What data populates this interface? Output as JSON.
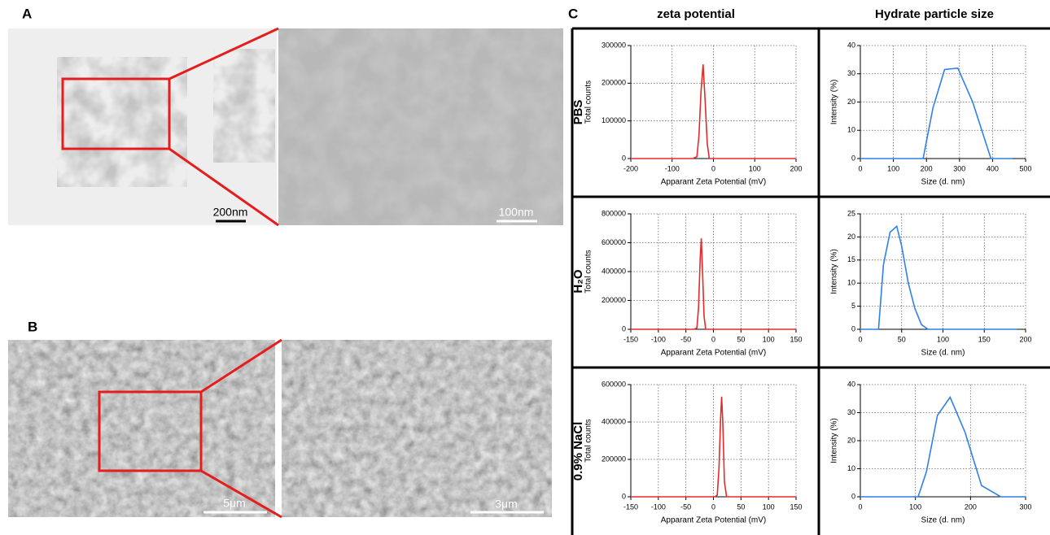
{
  "panel_labels": [
    "A",
    "B",
    "C"
  ],
  "micrographs": {
    "A": [
      "200nm",
      "100nm"
    ],
    "B": [
      "5μm",
      "3μm"
    ]
  },
  "column_headers": [
    "zeta potential",
    "Hydrate particle size"
  ],
  "row_labels": [
    "PBS",
    "H₂O",
    "0.9% NaCl"
  ],
  "chart_data": [
    {
      "type": "line",
      "xlabel": "Apparant Zeta Potential (mV)",
      "ylabel": "Total counts",
      "color": "#e32b2b",
      "grid": true,
      "x": [
        -200,
        -50,
        -40,
        -35,
        -30,
        -25,
        -20,
        -15,
        -10,
        200
      ],
      "values": [
        0,
        0,
        5000,
        60000,
        180000,
        250000,
        150000,
        40000,
        0,
        0
      ],
      "xlim": [
        -200,
        200
      ],
      "xticks": [
        -200,
        -100,
        0,
        100,
        200
      ],
      "ylim": [
        0,
        300000
      ],
      "yticks": [
        0,
        100000,
        200000,
        300000
      ]
    },
    {
      "type": "line",
      "xlabel": "Size (d. nm)",
      "ylabel": "Intensity (%)",
      "color": "#2f80e8",
      "grid": true,
      "x": [
        0,
        190,
        220,
        255,
        295,
        340,
        395,
        460
      ],
      "values": [
        0,
        0,
        18,
        31.5,
        32,
        20,
        0,
        0
      ],
      "xlim": [
        0,
        500
      ],
      "xticks": [
        0,
        100,
        200,
        300,
        400,
        500
      ],
      "ylim": [
        0,
        40
      ],
      "yticks": [
        0,
        10,
        20,
        30,
        40
      ]
    },
    {
      "type": "line",
      "xlabel": "Apparant Zeta Potential (mV)",
      "ylabel": "Total counts",
      "color": "#e32b2b",
      "grid": true,
      "x": [
        -150,
        -35,
        -30,
        -27,
        -24,
        -22,
        -20,
        -17,
        -14,
        150
      ],
      "values": [
        0,
        0,
        10000,
        150000,
        500000,
        630000,
        420000,
        90000,
        0,
        0
      ],
      "xlim": [
        -150,
        150
      ],
      "xticks": [
        -150,
        -100,
        -50,
        0,
        50,
        100,
        150
      ],
      "ylim": [
        0,
        800000
      ],
      "yticks": [
        0,
        200000,
        400000,
        600000,
        800000
      ]
    },
    {
      "type": "line",
      "xlabel": "Size (d. nm)",
      "ylabel": "Intensity (%)",
      "color": "#2f80e8",
      "grid": true,
      "x": [
        0,
        22,
        28,
        36,
        44,
        50,
        58,
        66,
        74,
        82,
        190
      ],
      "values": [
        0,
        0,
        14,
        21,
        22.3,
        18,
        10,
        4.5,
        1,
        0,
        0
      ],
      "xlim": [
        0,
        200
      ],
      "xticks": [
        0,
        50,
        100,
        150,
        200
      ],
      "ylim": [
        0,
        25
      ],
      "yticks": [
        0,
        5,
        10,
        15,
        20,
        25
      ]
    },
    {
      "type": "line",
      "xlabel": "Apparant Zeta Potential (mV)",
      "ylabel": "Total counts",
      "color": "#e32b2b",
      "grid": true,
      "x": [
        -150,
        3,
        7,
        10,
        13,
        15,
        17,
        20,
        24,
        150
      ],
      "values": [
        0,
        0,
        10000,
        150000,
        420000,
        535000,
        400000,
        80000,
        0,
        0
      ],
      "xlim": [
        -150,
        150
      ],
      "xticks": [
        -150,
        -100,
        -50,
        0,
        50,
        100,
        150
      ],
      "ylim": [
        0,
        600000
      ],
      "yticks": [
        0,
        200000,
        400000,
        600000
      ]
    },
    {
      "type": "line",
      "xlabel": "Size (d. nm)",
      "ylabel": "Intensity (%)",
      "color": "#2f80e8",
      "grid": true,
      "x": [
        0,
        105,
        120,
        140,
        163,
        190,
        220,
        255,
        300
      ],
      "values": [
        0,
        0,
        9,
        29,
        35.5,
        23,
        4,
        0,
        0
      ],
      "xlim": [
        0,
        300
      ],
      "xticks": [
        0,
        100,
        200,
        300
      ],
      "ylim": [
        0,
        40
      ],
      "yticks": [
        0,
        10,
        20,
        30,
        40
      ]
    }
  ]
}
